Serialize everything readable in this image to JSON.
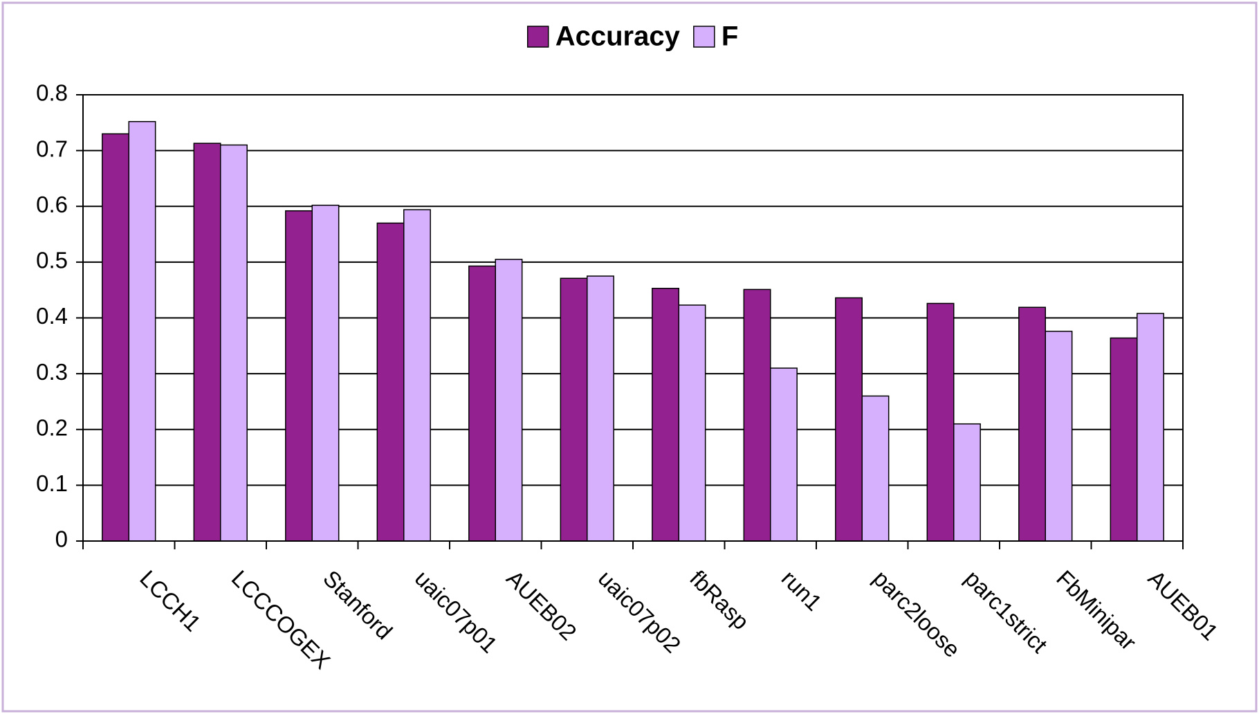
{
  "chart_data": {
    "type": "bar",
    "categories": [
      "LCCH1",
      "LCCCOGEX",
      "Stanford",
      "uaic07p01",
      "AUEB02",
      "uaic07p02",
      "fbRasp",
      "run1",
      "parc2loose",
      "parc1strict",
      "FbMinipar",
      "AUEB01"
    ],
    "series": [
      {
        "name": "Accuracy",
        "color": "#93218f",
        "values": [
          0.73,
          0.713,
          0.592,
          0.57,
          0.493,
          0.471,
          0.453,
          0.451,
          0.436,
          0.426,
          0.419,
          0.364
        ]
      },
      {
        "name": "F",
        "color": "#d6b0fc",
        "values": [
          0.752,
          0.71,
          0.602,
          0.594,
          0.505,
          0.475,
          0.423,
          0.31,
          0.26,
          0.21,
          0.376,
          0.408
        ]
      }
    ],
    "ylim": [
      0,
      0.8
    ],
    "yticks": [
      0,
      0.1,
      0.2,
      0.3,
      0.4,
      0.5,
      0.6,
      0.7,
      0.8
    ],
    "grid": true,
    "legend": "top"
  }
}
